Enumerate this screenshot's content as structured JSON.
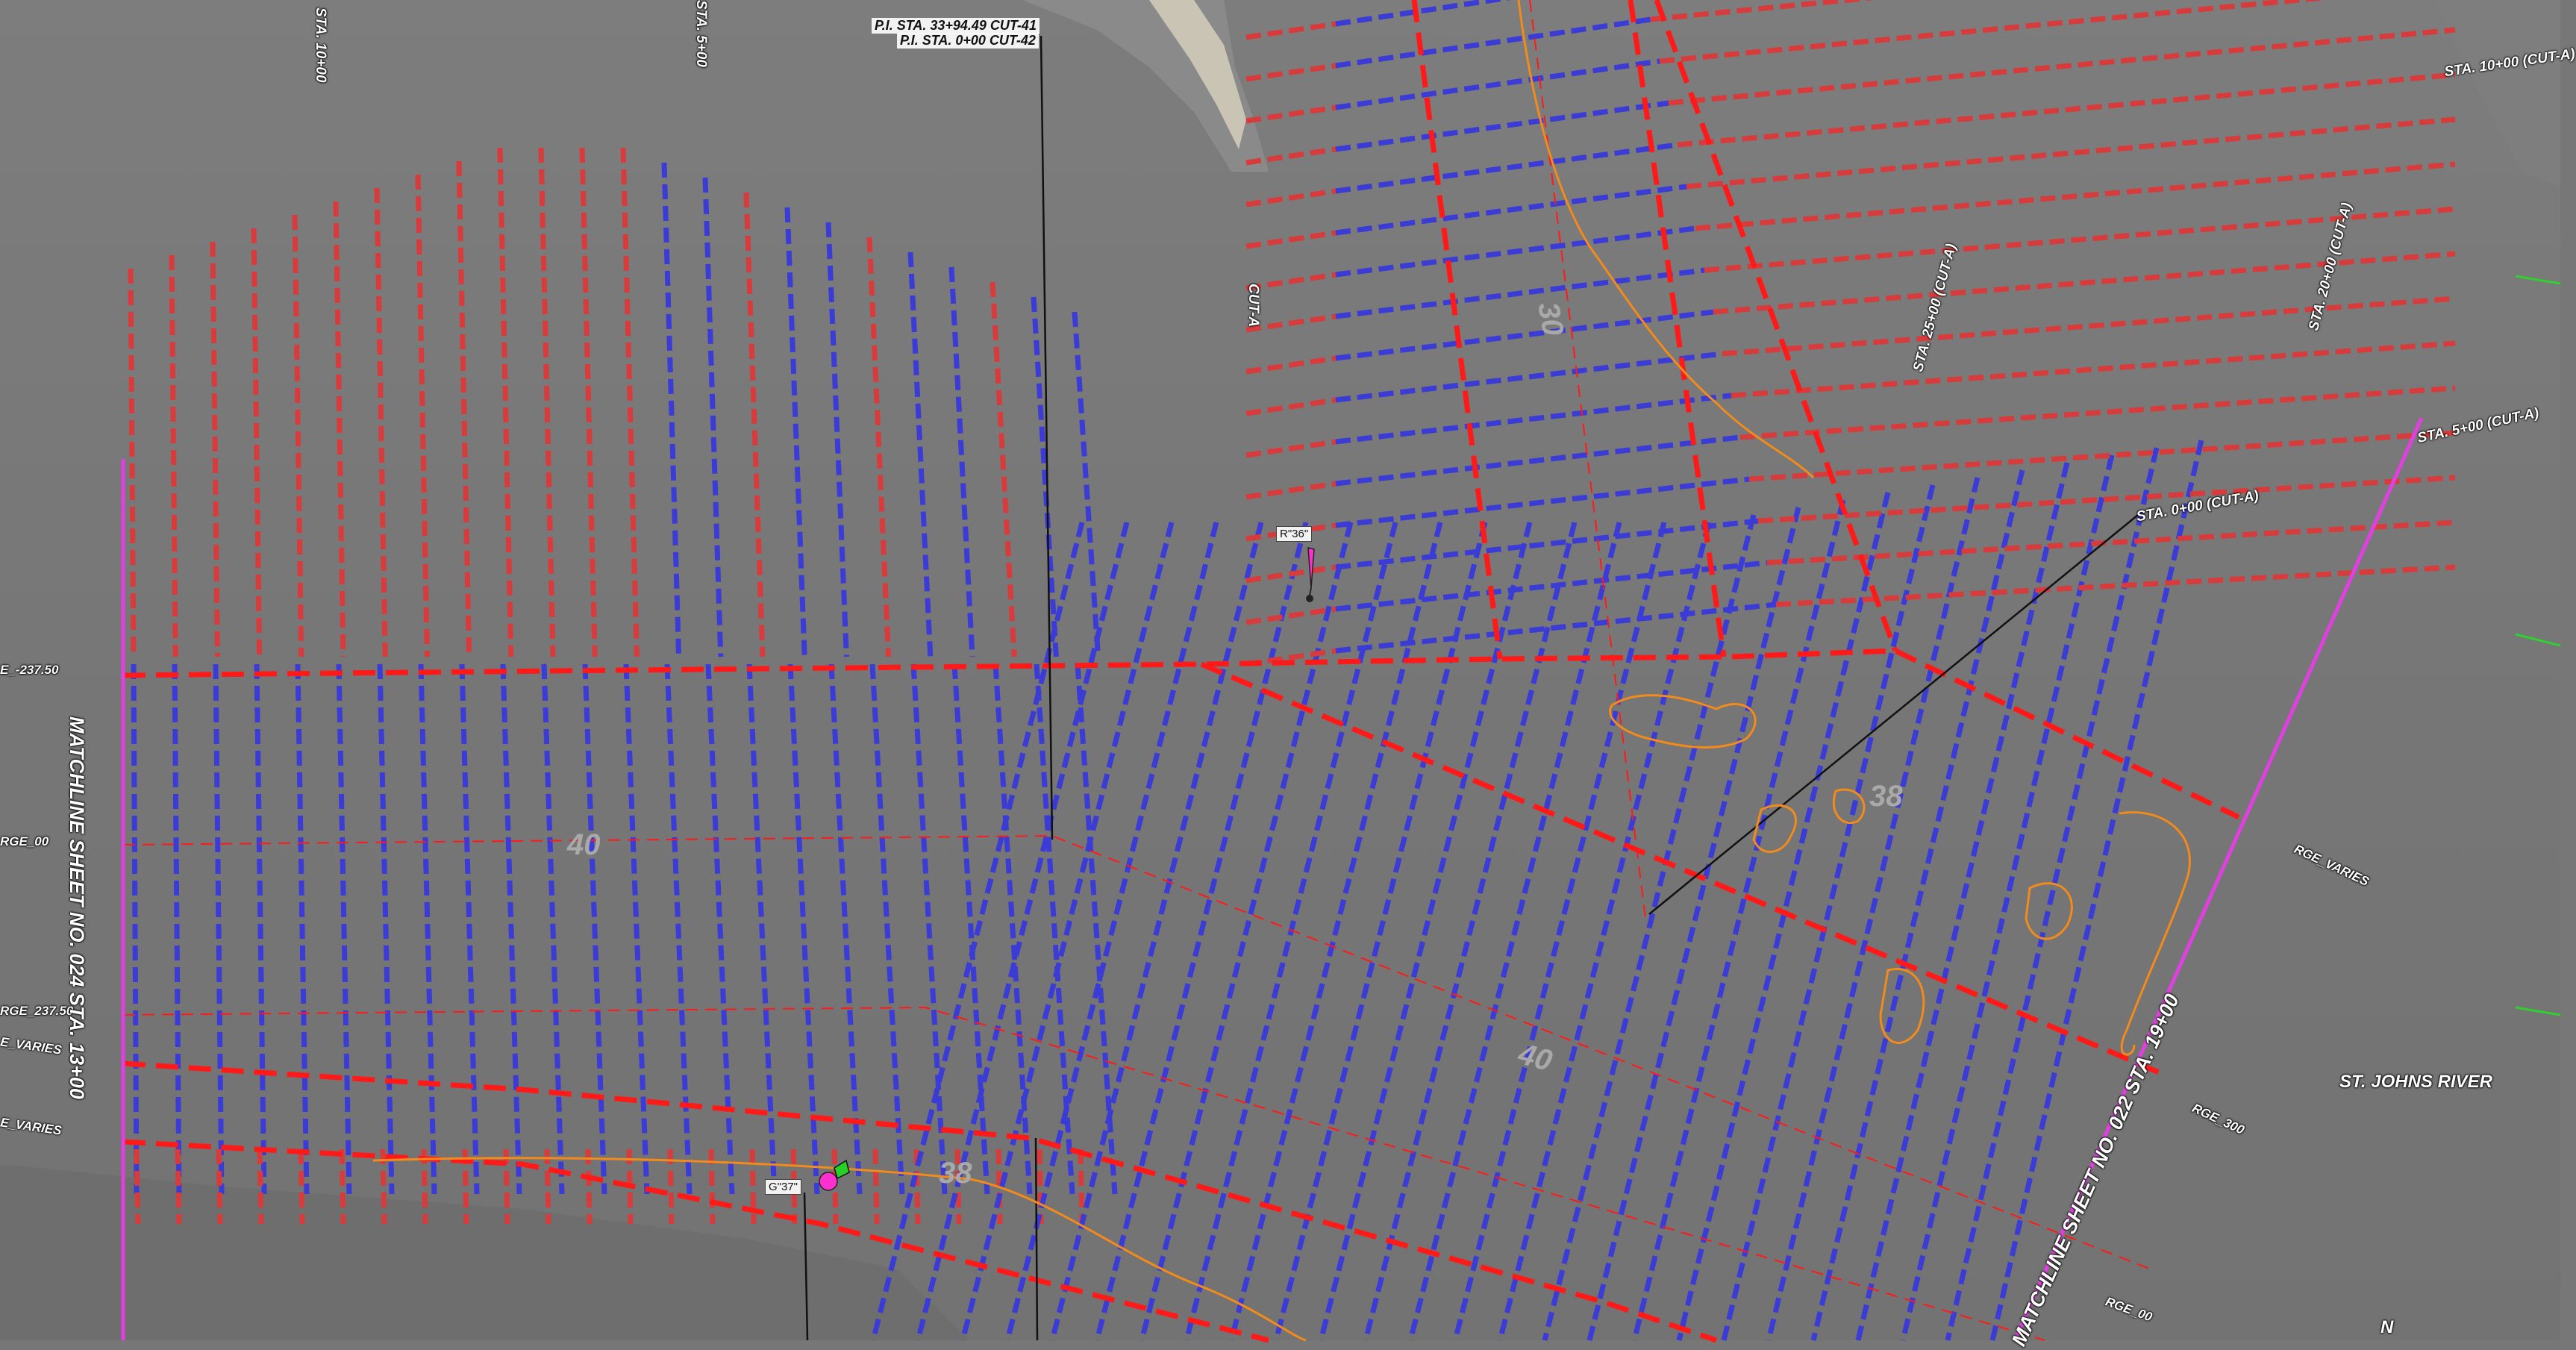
{
  "stations": {
    "sta_10_top": "STA. 10+00",
    "sta_5_top": "STA. 5+00",
    "sta_10_cut_a": "STA. 10+00 (CUT-A)",
    "sta_25_cut_a": "STA. 25+00 (CUT-A)",
    "sta_20_cut_a": "STA. 20+00 (CUT-A)",
    "sta_5_cut_a": "STA. 5+00 (CUT-A)",
    "sta_0_cut_a": "STA. 0+00 (CUT-A)"
  },
  "pi_label": {
    "line1": "P.I. STA. 33+94.49 CUT-41",
    "line2": "P.I. STA. 0+00 CUT-42"
  },
  "cut_a": "CUT-A",
  "ranges": {
    "rge_237_top": "E_-237.50",
    "rge_00_left": "RGE_00",
    "rge_237_mid": "RGE_237.50",
    "rge_varies_1": "E_VARIES",
    "rge_varies_2": "E_VARIES",
    "rge_varies_right": "RGE_VARIES",
    "rge_300": "RGE_300",
    "rge_00_right": "RGE_00"
  },
  "matchlines": {
    "left": "MATCHLINE SHEET NO. 024 STA. 13+00",
    "right": "MATCHLINE SHEET NO. 022 STA. 19+00"
  },
  "river": "ST. JOHNS RIVER",
  "north": "N",
  "contours": [
    "30",
    "38",
    "40",
    "40",
    "38"
  ],
  "markers": {
    "r36": "R\"36\"",
    "g37": "G\"37\""
  },
  "colors": {
    "deep_soundings": "#3b3bd6",
    "shallow_soundings": "#d83b3b",
    "channel_limit": "#ff1a1a",
    "matchline": "#e040e0",
    "shoal_contour": "#f28a1c"
  }
}
